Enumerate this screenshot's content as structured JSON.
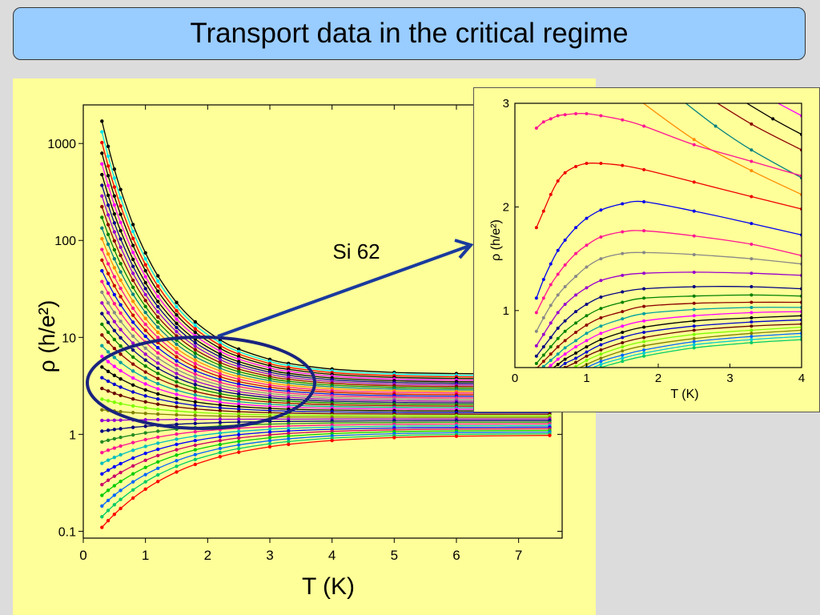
{
  "slide": {
    "title": "Transport data in the critical regime",
    "annotation": "Si 62"
  },
  "colors": {
    "background": "#dcdcdc",
    "title_fill": "#99ccff",
    "panel_fill": "#ffff99",
    "ellipse": "#1a237e",
    "arrow": "#1a3a9e"
  },
  "chart_data": [
    {
      "type": "line",
      "title": "",
      "xlabel": "T (K)",
      "ylabel": "ρ (h/e²)",
      "yscale": "log",
      "xlim": [
        0,
        7.7
      ],
      "ylim": [
        0.085,
        2500
      ],
      "xticks": [
        "0",
        "1",
        "2",
        "3",
        "4",
        "5",
        "6",
        "7"
      ],
      "yticks": [
        "0.1",
        "1",
        "10",
        "100",
        "1000"
      ],
      "x": [
        0.3,
        0.4,
        0.5,
        0.6,
        0.8,
        1.0,
        1.2,
        1.5,
        1.8,
        2.2,
        2.5,
        3.0,
        3.3,
        4.0,
        5.0,
        6.0,
        7.5
      ],
      "series_note": "≈39 curves for different electron densities; insulating curves diverge at low T, metallic curves drop",
      "series_count": 39,
      "curves": [
        {
          "y_at_0p3": 1700,
          "y_at_7p5": 4.5
        },
        {
          "y_at_0p3": 880,
          "y_at_7p5": 4.0
        },
        {
          "y_at_0p3": 520,
          "y_at_7p5": 3.7
        },
        {
          "y_at_0p3": 260,
          "y_at_7p5": 3.4
        },
        {
          "y_at_0p3": 140,
          "y_at_7p5": 3.1
        },
        {
          "y_at_0p3": 70,
          "y_at_7p5": 2.9
        },
        {
          "y_at_0p3": 40,
          "y_at_7p5": 2.7
        },
        {
          "y_at_0p3": 21,
          "y_at_7p5": 2.5
        },
        {
          "y_at_0p3": 11,
          "y_at_7p5": 2.3
        },
        {
          "y_at_0p3": 6.5,
          "y_at_7p5": 2.1
        },
        {
          "y_at_0p3": 4.2,
          "y_at_7p5": 1.95
        },
        {
          "y_at_0p3": 3.0,
          "y_at_7p5": 1.8
        }
      ],
      "color_cycle": [
        "#000000",
        "#00e5ee",
        "#ee0000",
        "#000000",
        "#ff00ff",
        "#000000",
        "#00008b",
        "#9400d3",
        "#8b0000",
        "#008000",
        "#008080",
        "#ff8c00",
        "#ff1493",
        "#cc0000",
        "#0000ee",
        "#ff1493",
        "#888888",
        "#9900cc",
        "#000080",
        "#008000",
        "#8b0000",
        "#00a0a0",
        "#ff00ff",
        "#000000",
        "#0000cc",
        "#660000",
        "#7cfc00",
        "#808000",
        "#9400d3",
        "#000080",
        "#228b22",
        "#ff1493",
        "#00bfbf",
        "#0000ff",
        "#cc0066",
        "#00cc00",
        "#0066ff",
        "#00cc66",
        "#ff0000"
      ]
    },
    {
      "type": "line",
      "title": "",
      "xlabel": "T (K)",
      "ylabel": "ρ (h/e²)",
      "xlim": [
        0,
        4
      ],
      "ylim": [
        0.45,
        3
      ],
      "xticks": [
        "0",
        "1",
        "2",
        "3",
        "4"
      ],
      "yticks": [
        "1",
        "2",
        "3"
      ],
      "x": [
        0.3,
        0.4,
        0.5,
        0.6,
        0.7,
        0.85,
        1.0,
        1.2,
        1.5,
        1.8,
        2.5,
        3.3,
        4.0
      ],
      "series": [
        {
          "color": "#ff1493",
          "values": [
            2.76,
            2.82,
            2.85,
            2.88,
            2.89,
            2.9,
            2.9,
            2.88,
            2.84,
            2.78,
            2.6,
            2.44,
            2.3
          ]
        },
        {
          "color": "#ee0000",
          "values": [
            1.8,
            1.96,
            2.12,
            2.25,
            2.33,
            2.39,
            2.42,
            2.42,
            2.4,
            2.36,
            2.24,
            2.1,
            1.98
          ]
        },
        {
          "color": "#0000ee",
          "values": [
            1.12,
            1.3,
            1.45,
            1.58,
            1.68,
            1.8,
            1.89,
            1.97,
            2.03,
            2.05,
            1.96,
            1.84,
            1.73
          ]
        },
        {
          "color": "#ff1493",
          "values": [
            0.98,
            1.12,
            1.25,
            1.35,
            1.44,
            1.55,
            1.63,
            1.71,
            1.76,
            1.77,
            1.72,
            1.64,
            1.53
          ]
        },
        {
          "color": "#888888",
          "values": [
            0.8,
            0.93,
            1.05,
            1.15,
            1.23,
            1.33,
            1.42,
            1.5,
            1.55,
            1.56,
            1.54,
            1.5,
            1.45
          ]
        },
        {
          "color": "#9900cc",
          "values": [
            0.66,
            0.77,
            0.88,
            0.98,
            1.06,
            1.15,
            1.22,
            1.29,
            1.34,
            1.36,
            1.37,
            1.36,
            1.34
          ]
        },
        {
          "color": "#000080",
          "values": [
            0.56,
            0.65,
            0.74,
            0.83,
            0.9,
            0.99,
            1.06,
            1.13,
            1.18,
            1.21,
            1.23,
            1.23,
            1.21
          ]
        },
        {
          "color": "#008000",
          "values": [
            0.49,
            0.57,
            0.65,
            0.73,
            0.8,
            0.88,
            0.95,
            1.02,
            1.08,
            1.12,
            1.14,
            1.15,
            1.14
          ]
        },
        {
          "color": "#8b0000",
          "values": [
            0.44,
            0.51,
            0.58,
            0.65,
            0.71,
            0.79,
            0.86,
            0.93,
            0.99,
            1.04,
            1.07,
            1.08,
            1.08
          ]
        },
        {
          "color": "#00a0a0",
          "values": [
            0.4,
            0.46,
            0.52,
            0.58,
            0.64,
            0.71,
            0.78,
            0.85,
            0.92,
            0.97,
            1.01,
            1.03,
            1.03
          ]
        },
        {
          "color": "#ff00ff",
          "values": [
            0.37,
            0.42,
            0.47,
            0.53,
            0.58,
            0.65,
            0.71,
            0.78,
            0.85,
            0.9,
            0.95,
            0.98,
            0.99
          ]
        },
        {
          "color": "#000000",
          "values": [
            0.34,
            0.38,
            0.43,
            0.48,
            0.53,
            0.59,
            0.65,
            0.72,
            0.79,
            0.84,
            0.9,
            0.93,
            0.95
          ]
        },
        {
          "color": "#0000cc",
          "values": [
            0.31,
            0.35,
            0.39,
            0.44,
            0.49,
            0.54,
            0.6,
            0.67,
            0.74,
            0.79,
            0.85,
            0.89,
            0.91
          ]
        },
        {
          "color": "#660000",
          "values": [
            0.28,
            0.32,
            0.36,
            0.4,
            0.45,
            0.5,
            0.56,
            0.62,
            0.69,
            0.74,
            0.81,
            0.85,
            0.87
          ]
        },
        {
          "color": "#7cfc00",
          "values": [
            0.26,
            0.29,
            0.33,
            0.37,
            0.41,
            0.46,
            0.52,
            0.58,
            0.65,
            0.7,
            0.77,
            0.81,
            0.84
          ]
        },
        {
          "color": "#808000",
          "values": [
            0.24,
            0.27,
            0.3,
            0.34,
            0.38,
            0.43,
            0.48,
            0.54,
            0.61,
            0.66,
            0.73,
            0.78,
            0.81
          ]
        },
        {
          "color": "#0066ff",
          "values": [
            0.22,
            0.25,
            0.28,
            0.31,
            0.35,
            0.4,
            0.45,
            0.51,
            0.57,
            0.62,
            0.7,
            0.75,
            0.78
          ]
        },
        {
          "color": "#00cccc",
          "values": [
            0.2,
            0.23,
            0.26,
            0.29,
            0.32,
            0.37,
            0.42,
            0.48,
            0.54,
            0.59,
            0.67,
            0.72,
            0.75
          ]
        },
        {
          "color": "#00cc66",
          "values": [
            0.19,
            0.21,
            0.24,
            0.27,
            0.3,
            0.34,
            0.39,
            0.45,
            0.51,
            0.56,
            0.64,
            0.69,
            0.72
          ]
        }
      ]
    }
  ]
}
